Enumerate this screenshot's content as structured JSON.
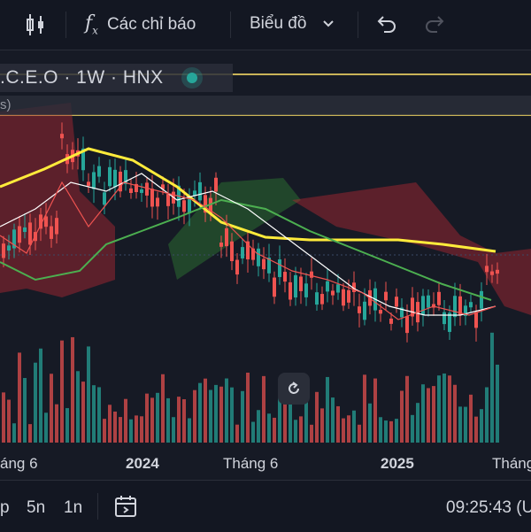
{
  "toolbar": {
    "indicators_label": "Các chỉ báo",
    "chart_type_label": "Biểu đồ"
  },
  "legend": {
    "symbol": ".C.E.O · 1W · HNX",
    "line2": "s)"
  },
  "xaxis": {
    "labels": [
      "áng 6",
      "2024",
      "Tháng 6",
      "2025",
      "Tháng"
    ]
  },
  "bottombar": {
    "range_buttons": [
      "p",
      "5n",
      "1n"
    ],
    "clock": "09:25:43 (U"
  },
  "colors": {
    "background": "#161a25",
    "up": "#26a69a",
    "down": "#ef5350",
    "ma_yellow": "#ffeb3b",
    "ma_green": "#4caf50",
    "ma_white": "#ffffff",
    "cloud_red": "rgba(178,40,51,0.45)",
    "cloud_green": "rgba(46,125,50,0.45)"
  },
  "icons": [
    "candlestick-icon",
    "function-icon",
    "chevron-down-icon",
    "undo-icon",
    "redo-icon",
    "reset-icon",
    "calendar-range-icon",
    "status-dot-icon"
  ]
}
